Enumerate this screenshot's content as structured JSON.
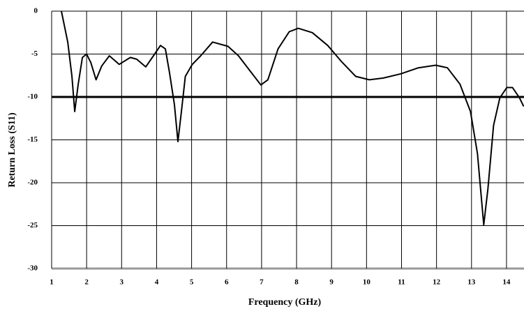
{
  "chart_data": {
    "type": "line",
    "xlabel": "Frequency (GHz)",
    "ylabel": "Return Loss (S11)",
    "x": [
      1.28,
      1.46,
      1.58,
      1.66,
      1.76,
      1.88,
      2.0,
      2.12,
      2.27,
      2.43,
      2.65,
      2.93,
      3.25,
      3.43,
      3.69,
      3.91,
      4.11,
      4.25,
      4.37,
      4.51,
      4.61,
      4.71,
      4.82,
      5.02,
      5.26,
      5.6,
      6.04,
      6.34,
      6.64,
      6.98,
      7.18,
      7.47,
      7.79,
      8.05,
      8.45,
      8.89,
      9.29,
      9.69,
      10.08,
      10.48,
      10.98,
      11.48,
      11.98,
      12.31,
      12.67,
      12.97,
      13.17,
      13.35,
      13.47,
      13.63,
      13.81,
      14.01,
      14.17,
      14.37,
      14.49
    ],
    "values": [
      0,
      -3.6,
      -7.6,
      -11.7,
      -8.5,
      -5.4,
      -5.0,
      -6.0,
      -8.0,
      -6.4,
      -5.2,
      -6.2,
      -5.4,
      -5.6,
      -6.5,
      -5.2,
      -4.0,
      -4.4,
      -7.2,
      -10.9,
      -15.2,
      -11.7,
      -7.6,
      -6.2,
      -5.2,
      -3.6,
      -4.1,
      -5.2,
      -6.8,
      -8.6,
      -8.0,
      -4.4,
      -2.4,
      -2.0,
      -2.5,
      -4.0,
      -5.9,
      -7.6,
      -8.0,
      -7.8,
      -7.3,
      -6.6,
      -6.3,
      -6.6,
      -8.5,
      -11.7,
      -16.6,
      -24.9,
      -20.7,
      -13.3,
      -10.1,
      -8.9,
      -8.9,
      -10.1,
      -11.1
    ],
    "color": "#000000",
    "hline": -10,
    "xlim": [
      1,
      14.5
    ],
    "ylim": [
      -30,
      0
    ],
    "xticks": [
      1,
      2,
      3,
      4,
      5,
      6,
      7,
      8,
      9,
      10,
      11,
      12,
      13,
      14
    ],
    "yticks": [
      -30,
      -25,
      -20,
      -15,
      -10,
      -5,
      0
    ],
    "grid": true
  }
}
